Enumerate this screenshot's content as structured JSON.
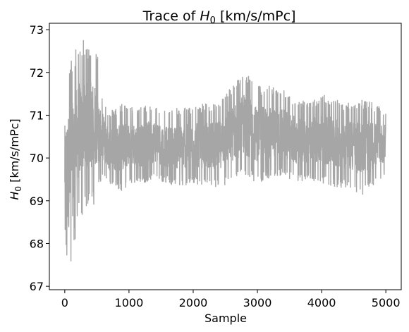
{
  "chart_data": {
    "type": "line",
    "title": "Trace of H0 [km/s/mPc]",
    "title_parts": {
      "prefix": "Trace of ",
      "symbol": "H",
      "sub": "0",
      "suffix": " [km/s/mPc]"
    },
    "xlabel": "Sample",
    "ylabel_parts": {
      "symbol": "H",
      "sub": "0",
      "suffix": " [km/s/mPc]"
    },
    "xlim": [
      -240,
      5240
    ],
    "ylim": [
      66.92,
      73.15
    ],
    "xticks": [
      0,
      1000,
      2000,
      3000,
      4000,
      5000
    ],
    "xtick_labels": [
      "0",
      "1000",
      "2000",
      "3000",
      "4000",
      "5000"
    ],
    "yticks": [
      67,
      68,
      69,
      70,
      71,
      72,
      73
    ],
    "ytick_labels": [
      "67",
      "68",
      "69",
      "70",
      "71",
      "72",
      "73"
    ],
    "grid": false,
    "series": [
      {
        "color": "#a6a6a6",
        "n_samples": 5000,
        "mean": 70.25,
        "envelope": {
          "x": [
            0,
            50,
            100,
            150,
            200,
            250,
            300,
            350,
            400,
            450,
            500,
            550,
            600,
            650,
            700,
            800,
            900,
            1000,
            1200,
            1400,
            1600,
            1800,
            2000,
            2200,
            2400,
            2600,
            2800,
            3000,
            3200,
            3400,
            3600,
            3800,
            4000,
            4200,
            4400,
            4600,
            4800,
            5000
          ],
          "upper": [
            71.5,
            72.1,
            72.3,
            72.5,
            72.7,
            72.6,
            72.8,
            72.6,
            72.7,
            72.5,
            72.7,
            71.6,
            71.5,
            71.2,
            71.1,
            71.2,
            71.3,
            71.2,
            71.2,
            71.3,
            71.1,
            71.2,
            71.2,
            71.3,
            71.3,
            71.7,
            72.1,
            71.7,
            71.7,
            71.6,
            71.4,
            71.3,
            71.5,
            71.4,
            71.3,
            71.4,
            71.3,
            71.1
          ],
          "lower": [
            68.1,
            67.3,
            67.3,
            67.9,
            68.5,
            68.7,
            68.6,
            68.9,
            68.9,
            68.9,
            69.1,
            69.4,
            69.5,
            69.4,
            69.3,
            69.3,
            69.2,
            69.4,
            69.4,
            69.5,
            69.4,
            69.3,
            69.4,
            69.3,
            69.3,
            69.4,
            69.5,
            69.4,
            69.5,
            69.6,
            69.4,
            69.5,
            69.4,
            69.3,
            69.3,
            69.1,
            69.3,
            69.6
          ]
        }
      }
    ]
  }
}
